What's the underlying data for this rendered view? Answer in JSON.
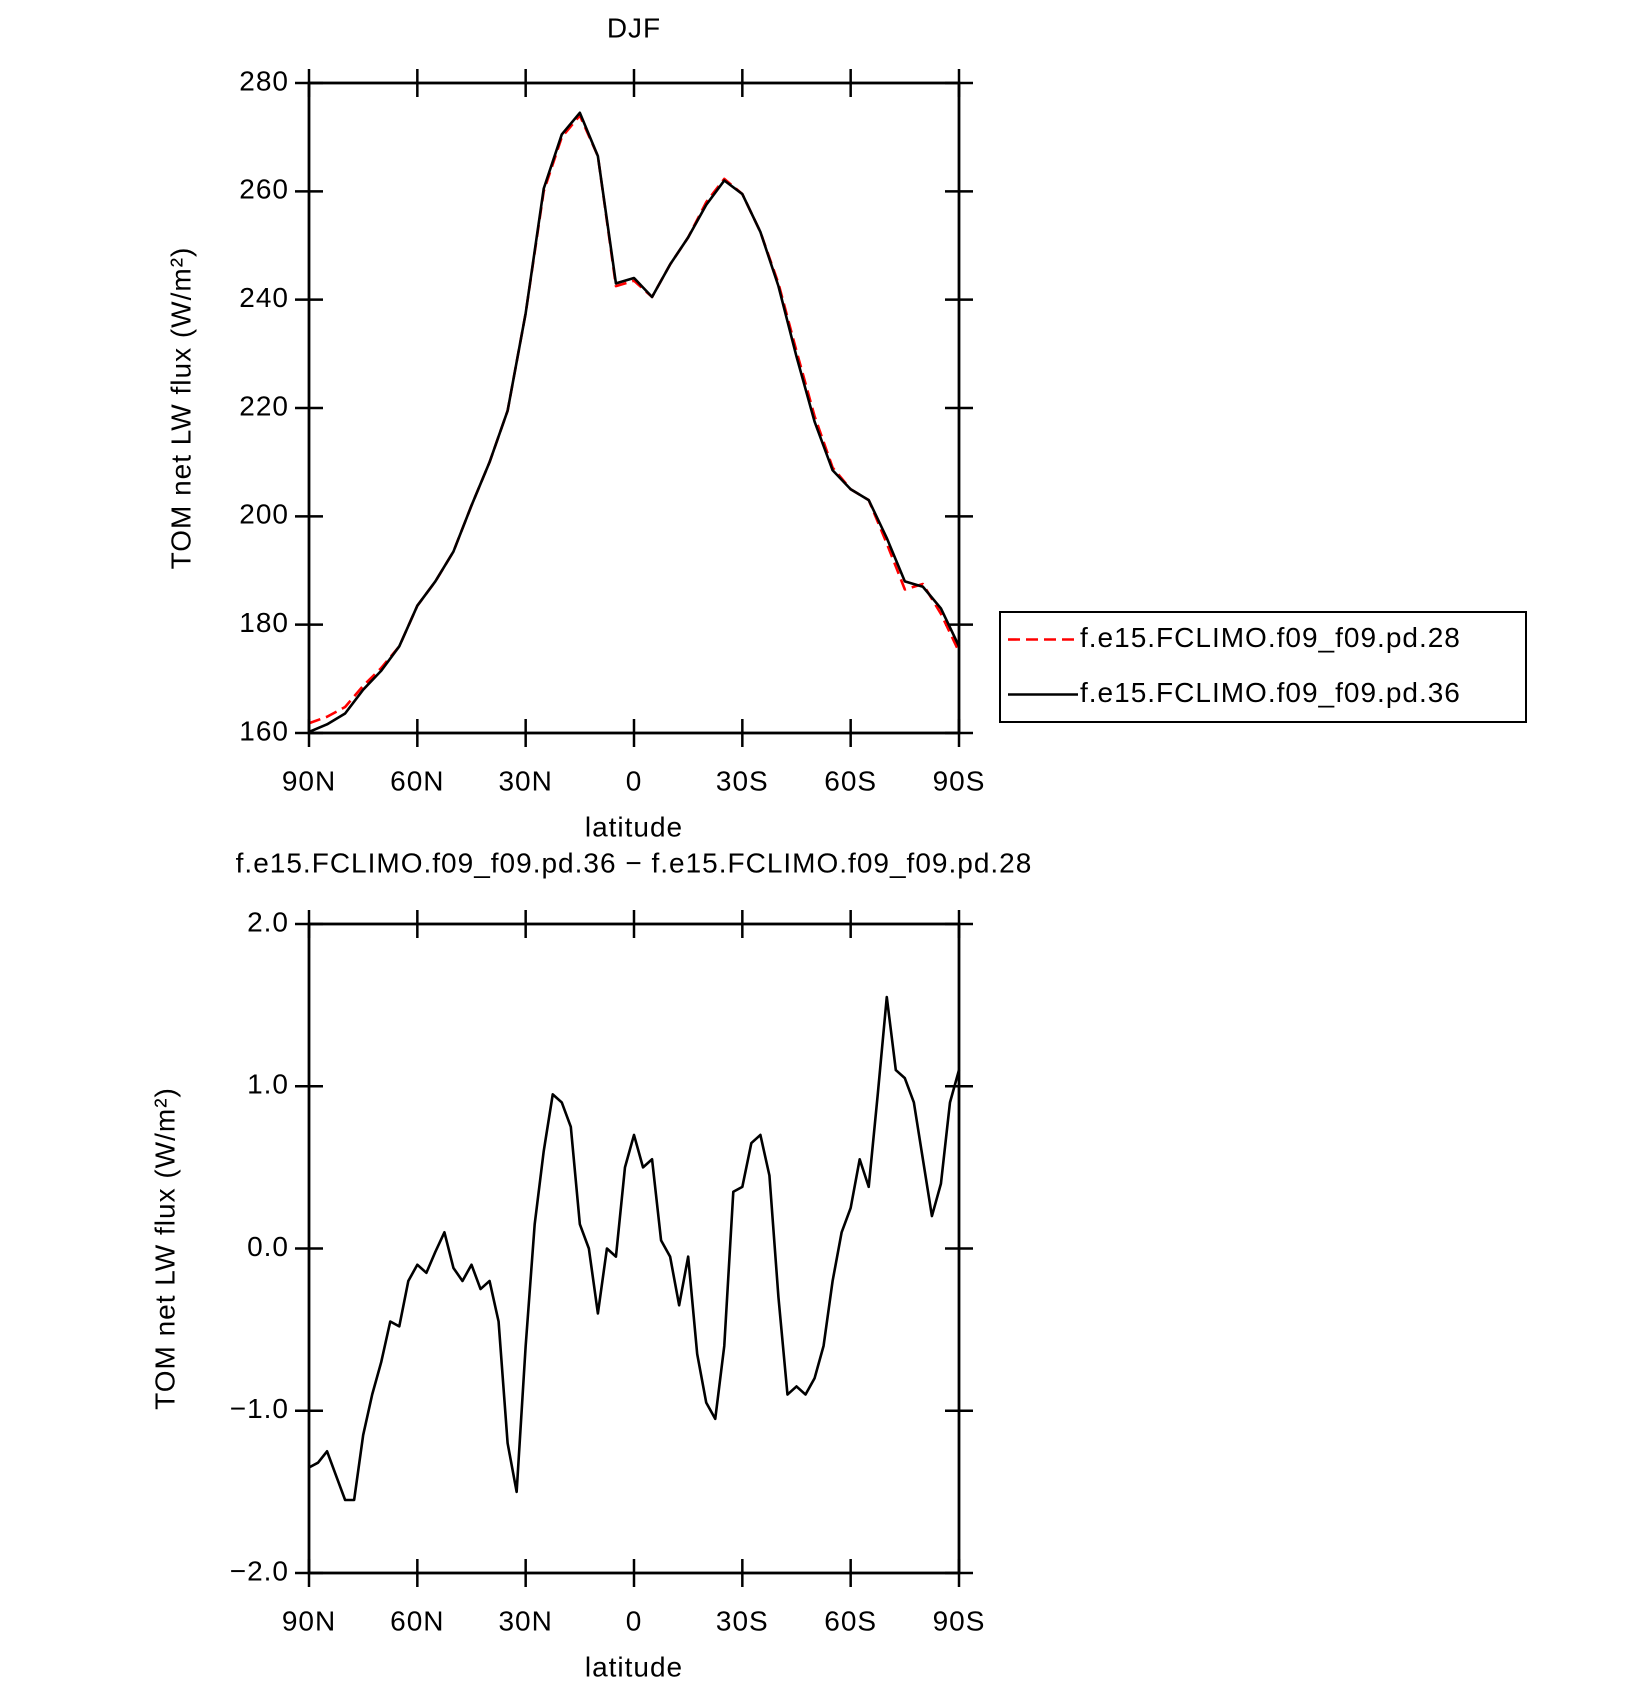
{
  "chart_data": [
    {
      "type": "line",
      "title": "DJF",
      "xlabel": "latitude",
      "ylabel": "TOM net LW flux (W/m²)",
      "x": [
        90,
        85,
        80,
        75,
        70,
        65,
        60,
        55,
        50,
        45,
        40,
        35,
        30,
        25,
        20,
        15,
        10,
        5,
        0,
        -5,
        -10,
        -15,
        -20,
        -25,
        -30,
        -35,
        -40,
        -45,
        -50,
        -55,
        -60,
        -65,
        -70,
        -75,
        -80,
        -85,
        -90
      ],
      "series": [
        {
          "name": "f.e15.FCLIMO.f09_f09.pd.28",
          "color": "#ff0000",
          "dashed": true,
          "values": [
            161.8,
            163,
            164.8,
            168.7,
            172,
            176,
            183.5,
            188,
            193.5,
            202,
            210,
            219.5,
            237.5,
            260,
            270,
            274,
            266.5,
            242.5,
            243.5,
            240.5,
            246.5,
            251.5,
            258,
            262.3,
            259.5,
            252.5,
            243,
            230.5,
            218.5,
            209,
            205,
            203,
            195,
            186.5,
            187.5,
            182,
            175
          ]
        },
        {
          "name": "f.e15.FCLIMO.f09_f09.pd.36",
          "color": "#000000",
          "dashed": false,
          "values": [
            160.2,
            161.6,
            163.6,
            168,
            171.5,
            176,
            183.5,
            188,
            193.5,
            202,
            210,
            219.5,
            237.5,
            260.5,
            270.5,
            274.5,
            266.5,
            243,
            244,
            240.5,
            246.5,
            251.5,
            257.5,
            262,
            259.5,
            252.5,
            242.5,
            229.5,
            217.5,
            208.5,
            205,
            203,
            196,
            188,
            187,
            183,
            176
          ]
        }
      ],
      "xlim": [
        90,
        -90
      ],
      "xticks": [
        {
          "value": 90,
          "label": "90N"
        },
        {
          "value": 60,
          "label": "60N"
        },
        {
          "value": 30,
          "label": "30N"
        },
        0,
        {
          "value": -30,
          "label": "30S"
        },
        {
          "value": -60,
          "label": "60S"
        },
        {
          "value": -90,
          "label": "90S"
        }
      ],
      "ylim": [
        160,
        280
      ],
      "yticks": [
        160,
        180,
        200,
        220,
        240,
        260,
        280
      ],
      "legend": "right"
    },
    {
      "type": "line",
      "title": "f.e15.FCLIMO.f09_f09.pd.36 − f.e15.FCLIMO.f09_f09.pd.28",
      "xlabel": "latitude",
      "ylabel": "TOM net LW flux (W/m²)",
      "x": [
        90,
        87.5,
        85,
        82.5,
        80,
        77.5,
        75,
        72.5,
        70,
        67.5,
        65,
        62.5,
        60,
        57.5,
        55,
        52.5,
        50,
        47.5,
        45,
        42.5,
        40,
        37.5,
        35,
        32.5,
        30,
        27.5,
        25,
        22.5,
        20,
        17.5,
        15,
        12.5,
        10,
        7.5,
        5,
        2.5,
        0,
        -2.5,
        -5,
        -7.5,
        -10,
        -12.5,
        -15,
        -17.5,
        -20,
        -22.5,
        -25,
        -27.5,
        -30,
        -32.5,
        -35,
        -37.5,
        -40,
        -42.5,
        -45,
        -47.5,
        -50,
        -52.5,
        -55,
        -57.5,
        -60,
        -62.5,
        -65,
        -67.5,
        -70,
        -72.5,
        -75,
        -77.5,
        -80,
        -82.5,
        -85,
        -87.5,
        -90
      ],
      "series": [
        {
          "color": "#000000",
          "values": [
            -1.35,
            -1.32,
            -1.25,
            -1.4,
            -1.55,
            -1.55,
            -1.15,
            -0.9,
            -0.7,
            -0.45,
            -0.48,
            -0.2,
            -0.1,
            -0.15,
            -0.02,
            0.1,
            -0.12,
            -0.2,
            -0.1,
            -0.25,
            -0.2,
            -0.45,
            -1.2,
            -1.5,
            -0.6,
            0.15,
            0.6,
            0.95,
            0.9,
            0.75,
            0.15,
            0.0,
            -0.4,
            0.0,
            -0.05,
            0.5,
            0.7,
            0.5,
            0.55,
            0.05,
            -0.05,
            -0.35,
            -0.05,
            -0.65,
            -0.95,
            -1.05,
            -0.6,
            0.35,
            0.38,
            0.65,
            0.7,
            0.45,
            -0.3,
            -0.9,
            -0.85,
            -0.9,
            -0.8,
            -0.6,
            -0.2,
            0.1,
            0.25,
            0.55,
            0.38,
            0.95,
            1.55,
            1.1,
            1.05,
            0.9,
            0.55,
            0.2,
            0.4,
            0.9,
            1.1
          ]
        }
      ],
      "xlim": [
        90,
        -90
      ],
      "xticks": [
        {
          "value": 90,
          "label": "90N"
        },
        {
          "value": 60,
          "label": "60N"
        },
        {
          "value": 30,
          "label": "30N"
        },
        0,
        {
          "value": -30,
          "label": "30S"
        },
        {
          "value": -60,
          "label": "60S"
        },
        {
          "value": -90,
          "label": "90S"
        }
      ],
      "ylim": [
        -2,
        2
      ],
      "yticks": [
        {
          "value": -2,
          "label": "−2.0"
        },
        {
          "value": -1,
          "label": "−1.0"
        },
        {
          "value": 0,
          "label": "0.0"
        },
        {
          "value": 1,
          "label": "1.0"
        },
        {
          "value": 2,
          "label": "2.0"
        }
      ]
    }
  ]
}
